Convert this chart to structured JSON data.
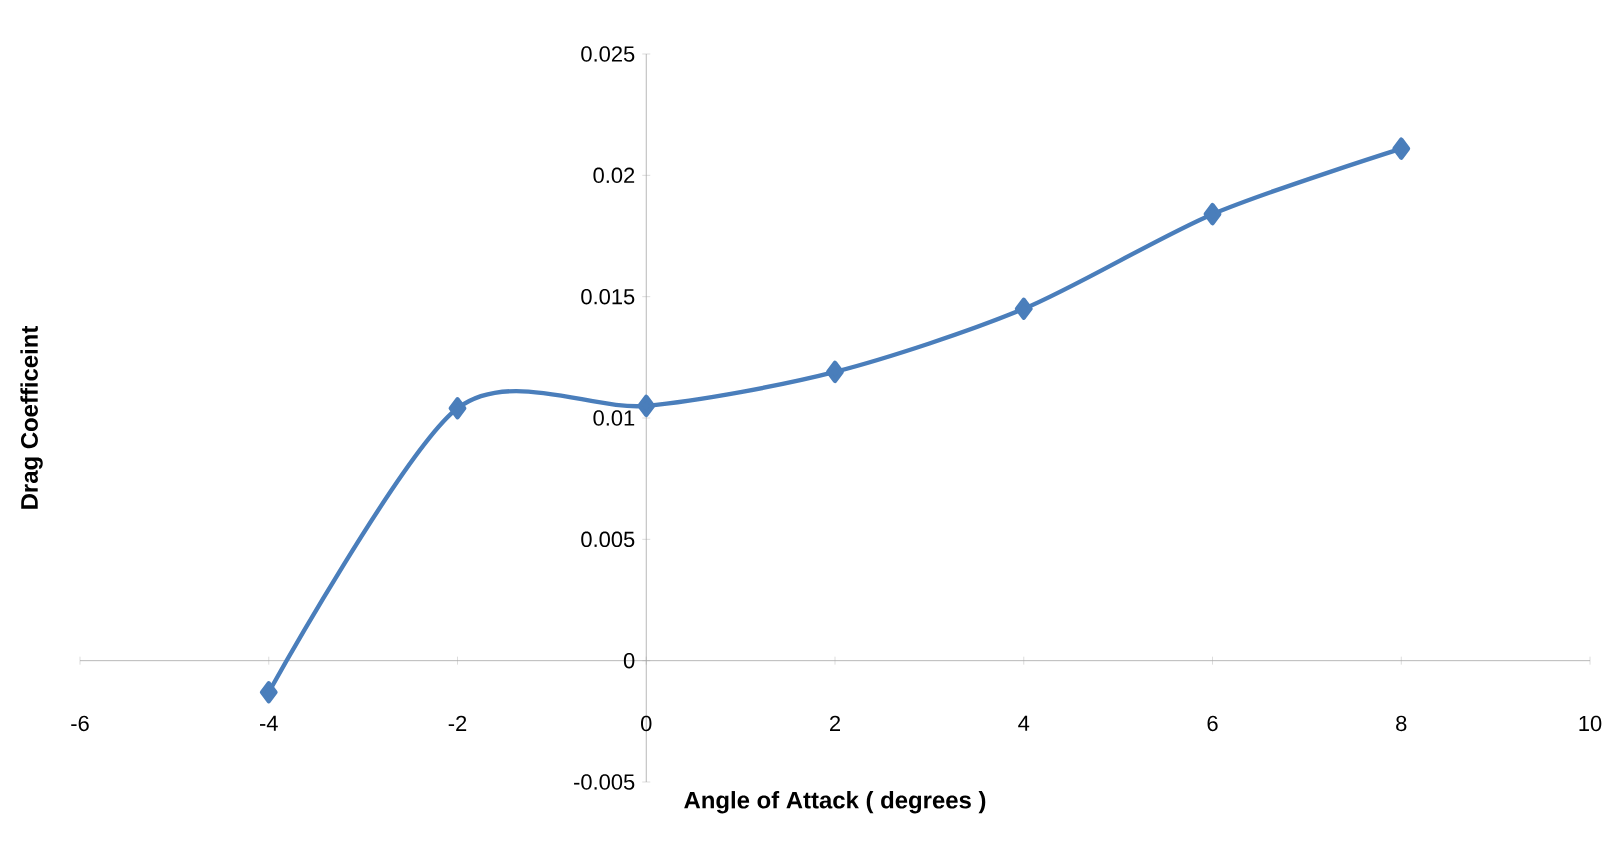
{
  "chart_data": {
    "type": "line",
    "xlabel": "Angle of Attack ( degrees )",
    "ylabel": "Drag Coefficeint",
    "x": [
      -4,
      -2,
      0,
      2,
      4,
      6,
      8
    ],
    "series": [
      {
        "color": "#4a7ebb",
        "values": [
          -0.0013,
          0.0104,
          0.0105,
          0.0119,
          0.0145,
          0.0184,
          0.0211
        ]
      }
    ],
    "xlim": [
      -6,
      10
    ],
    "xticks": [
      -6,
      -4,
      -2,
      0,
      2,
      4,
      6,
      8,
      10
    ],
    "ylim": [
      -0.005,
      0.025
    ],
    "yticks": [
      -0.005,
      0,
      0.005,
      0.01,
      0.015,
      0.02,
      0.025
    ],
    "grid": false,
    "marker": "diamond",
    "line_style": "solid"
  }
}
